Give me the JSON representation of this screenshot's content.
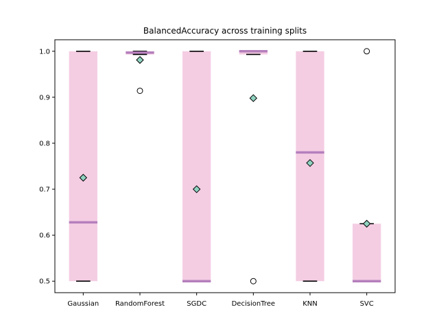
{
  "chart_data": {
    "type": "box",
    "title": "BalancedAccuracy across training splits",
    "xlabel": "",
    "ylabel": "",
    "ylim": [
      0.475,
      1.025
    ],
    "yticks": [
      "0.5",
      "0.6",
      "0.7",
      "0.8",
      "0.9",
      "1.0"
    ],
    "grid": false,
    "colors": {
      "box_fill": "#f4cde3",
      "median": "#b57fbc",
      "mean_marker": "#8fd3c0",
      "whisker_cap": "#000000",
      "flier": "#000000"
    },
    "categories": [
      "Gaussian",
      "RandomForest",
      "SGDC",
      "DecisionTree",
      "KNN",
      "SVC"
    ],
    "boxes": [
      {
        "category": "Gaussian",
        "whisker_low": 0.5,
        "q1": 0.5,
        "median": 0.628,
        "q3": 1.0,
        "whisker_high": 1.0,
        "mean": 0.725,
        "fliers": []
      },
      {
        "category": "RandomForest",
        "whisker_low": 0.993,
        "q1": 0.993,
        "median": 0.997,
        "q3": 1.0,
        "whisker_high": 1.0,
        "mean": 0.981,
        "fliers": [
          0.914
        ]
      },
      {
        "category": "SGDC",
        "whisker_low": 0.5,
        "q1": 0.5,
        "median": 0.5,
        "q3": 1.0,
        "whisker_high": 1.0,
        "mean": 0.7,
        "fliers": []
      },
      {
        "category": "DecisionTree",
        "whisker_low": 0.993,
        "q1": 0.993,
        "median": 1.0,
        "q3": 1.0,
        "whisker_high": 1.0,
        "mean": 0.898,
        "fliers": [
          0.5
        ]
      },
      {
        "category": "KNN",
        "whisker_low": 0.5,
        "q1": 0.5,
        "median": 0.78,
        "q3": 1.0,
        "whisker_high": 1.0,
        "mean": 0.757,
        "fliers": []
      },
      {
        "category": "SVC",
        "whisker_low": 0.5,
        "q1": 0.5,
        "median": 0.5,
        "q3": 0.625,
        "whisker_high": 0.625,
        "mean": 0.625,
        "fliers": [
          1.0
        ]
      }
    ]
  }
}
